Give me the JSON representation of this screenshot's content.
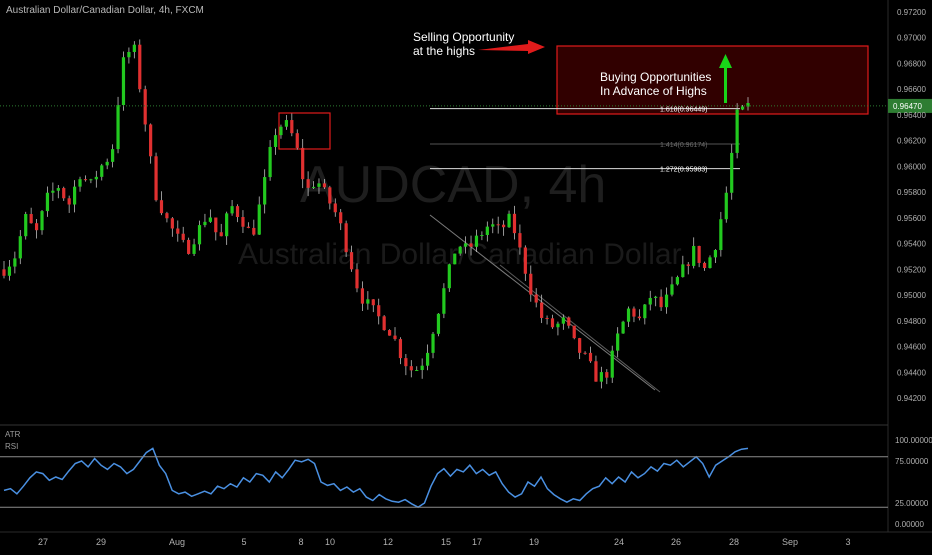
{
  "header": {
    "title": "Australian Dollar/Canadian Dollar, 4h, FXCM"
  },
  "watermark": {
    "symbol": "AUDCAD, 4h",
    "name": "Australian Dollar/Canadian Dollar"
  },
  "annotations": {
    "selling": [
      "Selling Opportunity",
      "at the highs"
    ],
    "buying": [
      "Buying Opportunities",
      "In Advance of Highs"
    ]
  },
  "fib_levels": [
    {
      "label": "1.618(0.96449)",
      "value": 0.96449,
      "emphasis": true
    },
    {
      "label": "1.414(0.96174)",
      "value": 0.96174,
      "emphasis": false
    },
    {
      "label": "1.272(0.95983)",
      "value": 0.95983,
      "emphasis": true
    }
  ],
  "colors": {
    "up": "#22c91f",
    "down": "#e03030",
    "rsi": "#4a90e2",
    "current_price": "#2e7d32",
    "zone_border": "#e01b1b",
    "zone_fill": "#3a0000",
    "green_arrow": "#19d319",
    "red_arrow": "#e01b1b",
    "axis_text": "#b0b0b0",
    "grid_line": "#8c8c8c"
  },
  "chart_data": [
    {
      "type": "candlestick",
      "title": "Australian Dollar/Canadian Dollar, 4h, FXCM",
      "xlabel": "",
      "ylabel": "",
      "ylim": [
        0.941,
        0.973
      ],
      "y_ticks": [
        "0.97200",
        "0.97000",
        "0.96800",
        "0.96600",
        "0.96400",
        "0.96200",
        "0.96000",
        "0.95800",
        "0.95600",
        "0.95400",
        "0.95200",
        "0.95000",
        "0.94800",
        "0.94600",
        "0.94400",
        "0.94200"
      ],
      "y_tick_values": [
        0.972,
        0.97,
        0.968,
        0.966,
        0.964,
        0.962,
        0.96,
        0.958,
        0.956,
        0.954,
        0.952,
        0.95,
        0.948,
        0.946,
        0.944,
        0.942
      ],
      "current_price_label": "0.96470",
      "current_price": 0.9647,
      "x_tick_labels": [
        "27",
        "29",
        "Aug",
        "5",
        "8",
        "10",
        "12",
        "15",
        "17",
        "19",
        "24",
        "26",
        "28",
        "Sep",
        "3"
      ],
      "close_path": [
        0.952,
        0.953,
        0.956,
        0.9548,
        0.9575,
        0.9585,
        0.957,
        0.9595,
        0.9585,
        0.96,
        0.961,
        0.968,
        0.9695,
        0.964,
        0.958,
        0.956,
        0.9545,
        0.9535,
        0.955,
        0.9565,
        0.954,
        0.957,
        0.956,
        0.9545,
        0.958,
        0.9625,
        0.9635,
        0.962,
        0.958,
        0.959,
        0.9575,
        0.956,
        0.953,
        0.95,
        0.949,
        0.948,
        0.947,
        0.945,
        0.944,
        0.945,
        0.948,
        0.951,
        0.954,
        0.9535,
        0.9545,
        0.9555,
        0.955,
        0.956,
        0.953,
        0.95,
        0.948,
        0.9475,
        0.948,
        0.946,
        0.945,
        0.9435,
        0.944,
        0.947,
        0.949,
        0.948,
        0.95,
        0.949,
        0.9505,
        0.952,
        0.9535,
        0.952,
        0.954,
        0.958,
        0.964,
        0.9647
      ],
      "candle_count": 138,
      "zones": [
        {
          "name": "buying-zone",
          "x_range": [
            "28",
            "Sep"
          ],
          "y_range": [
            0.9644,
            0.9695
          ]
        },
        {
          "name": "selling-box",
          "x_range": [
            "8",
            "10"
          ],
          "y_range": [
            0.9615,
            0.964
          ]
        }
      ]
    },
    {
      "type": "line",
      "title": "",
      "legend": [
        "ATR",
        "RSI"
      ],
      "ylim": [
        -5,
        100
      ],
      "y_ticks": [
        "100.00000",
        "75.00000",
        "25.00000",
        "0.00000"
      ],
      "y_tick_values": [
        100,
        75,
        25,
        0
      ],
      "reference_lines": [
        80,
        20
      ],
      "series": [
        {
          "values": [
            40,
            42,
            36,
            45,
            55,
            62,
            60,
            52,
            56,
            53,
            63,
            72,
            75,
            68,
            78,
            70,
            65,
            72,
            68,
            60,
            65,
            75,
            85,
            90,
            70,
            60,
            40,
            36,
            38,
            33,
            36,
            39,
            36,
            45,
            42,
            48,
            44,
            55,
            50,
            60,
            58,
            50,
            62,
            55,
            65,
            76,
            74,
            77,
            72,
            50,
            46,
            48,
            40,
            44,
            38,
            42,
            32,
            28,
            35,
            30,
            27,
            26,
            29,
            24,
            20,
            25,
            45,
            60,
            66,
            57,
            65,
            62,
            70,
            60,
            65,
            58,
            62,
            48,
            38,
            32,
            36,
            50,
            45,
            56,
            42,
            35,
            30,
            26,
            30,
            28,
            36,
            42,
            45,
            55,
            48,
            56,
            50,
            62,
            55,
            60,
            68,
            63,
            72,
            70,
            76,
            68,
            74,
            80,
            72,
            56,
            70,
            75,
            80,
            86,
            89,
            90
          ]
        }
      ]
    }
  ]
}
